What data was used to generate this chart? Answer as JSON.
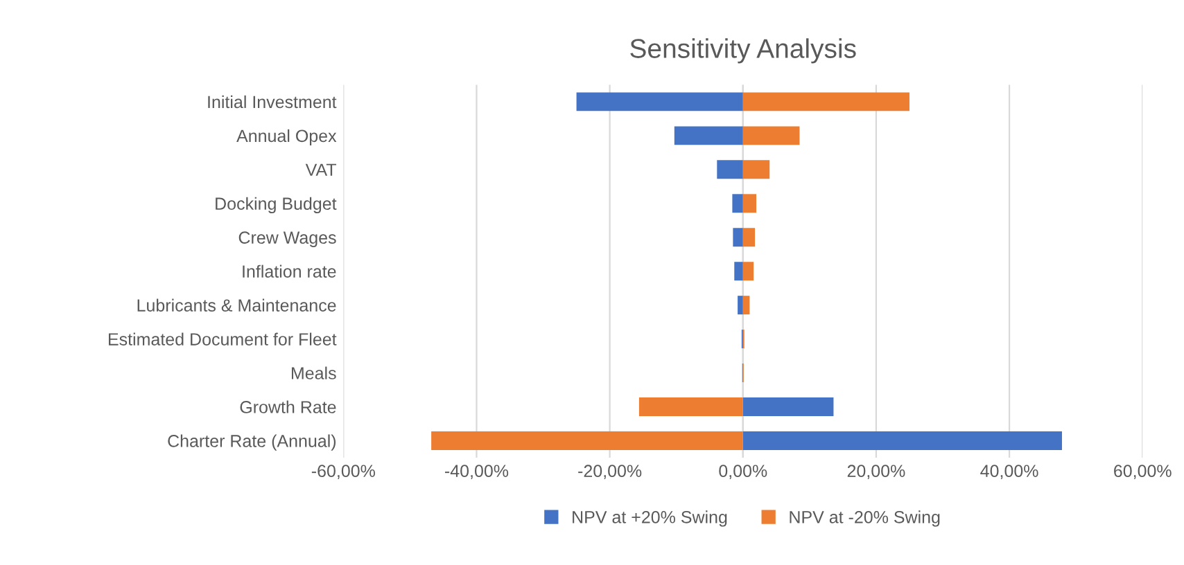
{
  "chart_data": {
    "type": "bar",
    "orientation": "horizontal",
    "stacked": true,
    "title": "Sensitivity Analysis",
    "categories": [
      "Initial Investment",
      "Annual Opex",
      "VAT",
      "Docking Budget",
      "Crew Wages",
      "Inflation rate",
      "Lubricants & Maintenance",
      "Estimated Document for Fleet",
      "Meals",
      "Growth Rate",
      "Charter Rate (Annual)"
    ],
    "series": [
      {
        "name": "NPV at +20% Swing",
        "color": "#4472c4",
        "values": [
          -25,
          -10.3,
          -3.9,
          -1.6,
          -1.5,
          -1.3,
          -0.8,
          -0.2,
          -0.1,
          13.6,
          47.9
        ]
      },
      {
        "name": "NPV at -20% Swing",
        "color": "#ed7d31",
        "values": [
          25,
          8.5,
          4,
          2,
          1.8,
          1.6,
          1,
          0.2,
          0.1,
          -15.6,
          -46.8
        ]
      }
    ],
    "xlim": [
      -60,
      60
    ],
    "xticks": [
      {
        "value": -60,
        "label": "-60,00%"
      },
      {
        "value": -40,
        "label": "-40,00%"
      },
      {
        "value": -20,
        "label": "-20,00%"
      },
      {
        "value": 0,
        "label": "0,00%"
      },
      {
        "value": 20,
        "label": "20,00%"
      },
      {
        "value": 40,
        "label": "40,00%"
      },
      {
        "value": 60,
        "label": "60,00%"
      }
    ],
    "grid": "x",
    "legend": "bottom"
  }
}
